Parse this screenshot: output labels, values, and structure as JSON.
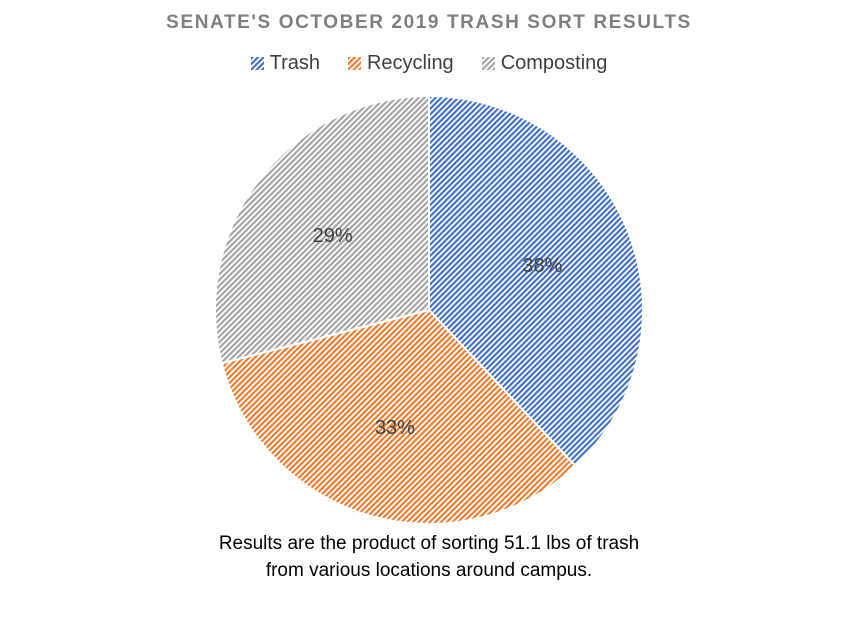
{
  "chart_data": {
    "type": "pie",
    "title": "SENATE'S OCTOBER 2019 TRASH SORT RESULTS",
    "categories": [
      "Trash",
      "Recycling",
      "Composting"
    ],
    "values": [
      38,
      33,
      29
    ],
    "labels": [
      "38%",
      "33%",
      "29%"
    ],
    "colors": [
      "#4472c4",
      "#ed7d31",
      "#a5a5a5"
    ],
    "fill_style": "diagonal-hatch",
    "legend_position": "top",
    "start_angle": "top, clockwise"
  },
  "caption": {
    "line1": "Results are the product of sorting 51.1 lbs of trash",
    "line2": "from various locations around campus."
  }
}
